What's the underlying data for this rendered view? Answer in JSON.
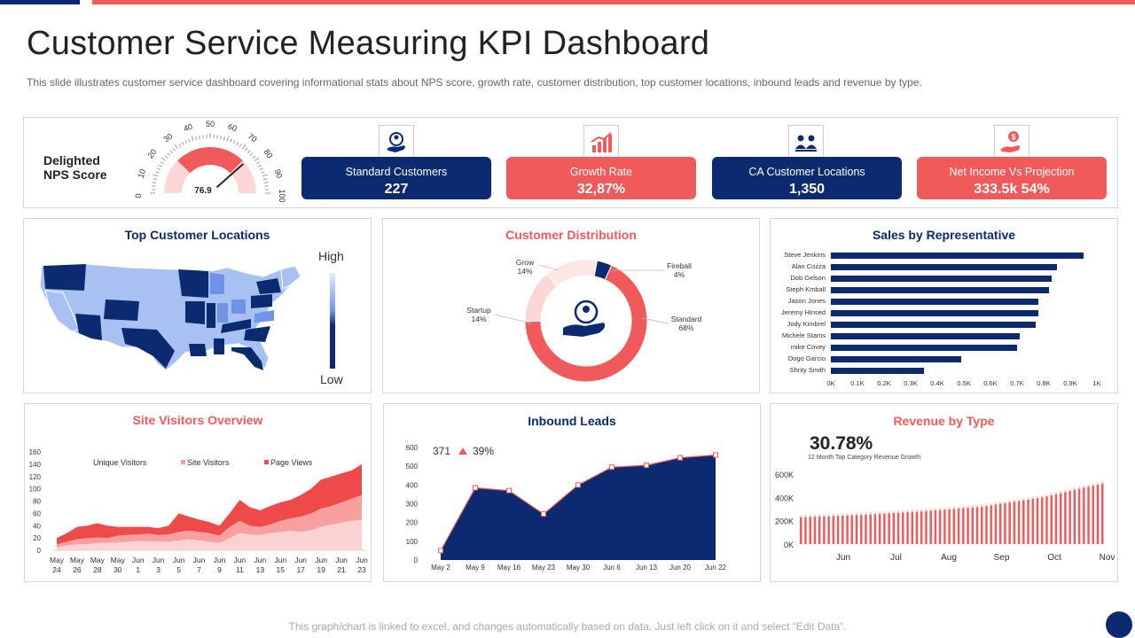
{
  "header": {
    "title": "Customer Service Measuring KPI Dashboard",
    "subtitle": "This slide illustrates customer service dashboard covering informational stats about NPS score, growth rate, customer distribution, top customer locations, inbound leads and revenue by type."
  },
  "nps": {
    "label_line1": "Delighted",
    "label_line2": "NPS Score",
    "value": "76.9",
    "value_num": 76.9,
    "scale": [
      "0",
      "10",
      "20",
      "30",
      "40",
      "50",
      "60",
      "70",
      "80",
      "90",
      "100"
    ]
  },
  "kpis": [
    {
      "label": "Standard Customers",
      "value": "227",
      "icon": "user-hand-icon"
    },
    {
      "label": "Growth Rate",
      "value": "32,87%",
      "icon": "bar-chart-icon"
    },
    {
      "label": "CA Customer Locations",
      "value": "1,350",
      "icon": "team-icon"
    },
    {
      "label": "Net Income Vs Projection",
      "value": "333.5k 54%",
      "icon": "money-hand-icon"
    }
  ],
  "colors": {
    "navy": "#0b2a6f",
    "red": "#f15a5a",
    "light_blue": "#a9c1f2",
    "pink": "#fbd7d7"
  },
  "locations": {
    "title": "Top Customer Locations",
    "legend_high": "High",
    "legend_low": "Low"
  },
  "distribution": {
    "title": "Customer Distribution",
    "segments": [
      {
        "name": "Fireball",
        "pct": "4%",
        "value": 4
      },
      {
        "name": "Standard",
        "pct": "68%",
        "value": 68
      },
      {
        "name": "Startup",
        "pct": "14%",
        "value": 14
      },
      {
        "name": "Grow",
        "pct": "14%",
        "value": 14
      }
    ]
  },
  "sales": {
    "title": "Sales by Representative",
    "names": [
      "Steve Jenkins",
      "Alan Cozza",
      "Dob Gelson",
      "Steph Kmball",
      "Jason Jones",
      "Jeremy Hinsed",
      "Jody Kimbrel",
      "Michele Stams",
      "mike Covey",
      "Dogo Garcio",
      "Shrity Smith"
    ],
    "values": [
      950,
      850,
      830,
      820,
      780,
      780,
      770,
      710,
      700,
      490,
      350
    ],
    "ticks": [
      "0K",
      "0.1K",
      "0.2K",
      "0.3K",
      "0.4K",
      "0.5K",
      "0.6K",
      "0.7K",
      "0.8K",
      "0.9K",
      "1K"
    ]
  },
  "visitors": {
    "title": "Site Visitors Overview",
    "legend": [
      "Unique Visitors",
      "Site Visitors",
      "Page Views"
    ],
    "yticks": [
      "0",
      "20",
      "40",
      "60",
      "80",
      "100",
      "120",
      "140",
      "160"
    ],
    "xlabels": [
      [
        "May",
        "24"
      ],
      [
        "May",
        "26"
      ],
      [
        "May",
        "28"
      ],
      [
        "May",
        "30"
      ],
      [
        "Jun",
        "1"
      ],
      [
        "Jun",
        "3"
      ],
      [
        "Jun",
        "5"
      ],
      [
        "Jun",
        "7"
      ],
      [
        "Jun",
        "9"
      ],
      [
        "Jun",
        "11"
      ],
      [
        "Jun",
        "13"
      ],
      [
        "Jun",
        "15"
      ],
      [
        "Jun",
        "17"
      ],
      [
        "Jun",
        "19"
      ],
      [
        "Jun",
        "21"
      ],
      [
        "Jun",
        "23"
      ]
    ]
  },
  "leads": {
    "title": "Inbound Leads",
    "stat_value": "371",
    "stat_pct": "39%",
    "yticks": [
      "0",
      "100",
      "200",
      "300",
      "400",
      "500",
      "600"
    ],
    "xlabels": [
      "May 2",
      "May 9",
      "May 16",
      "May 23",
      "May 30",
      "Jun 6",
      "Jun 13",
      "Jun 20",
      "Jun 22"
    ]
  },
  "revenue": {
    "title": "Revenue by Type",
    "stat_value": "30.78%",
    "stat_caption": "12 Month Top Category Revenue Growth",
    "yticks": [
      "0K",
      "200K",
      "400K",
      "600K"
    ],
    "xlabels": [
      "Jun",
      "Jul",
      "Aug",
      "Sep",
      "Oct",
      "Nov"
    ]
  },
  "chart_data": [
    {
      "type": "bar",
      "title": "Sales by Representative",
      "categories": [
        "Steve Jenkins",
        "Alan Cozza",
        "Dob Gelson",
        "Steph Kmball",
        "Jason Jones",
        "Jeremy Hinsed",
        "Jody Kimbrel",
        "Michele Stams",
        "mike Covey",
        "Dogo Garcio",
        "Shrity Smith"
      ],
      "values": [
        950,
        850,
        830,
        820,
        780,
        780,
        770,
        710,
        700,
        490,
        350
      ],
      "xlim": [
        0,
        1000
      ],
      "orientation": "horizontal"
    },
    {
      "type": "pie",
      "title": "Customer Distribution",
      "categories": [
        "Fireball",
        "Standard",
        "Startup",
        "Grow"
      ],
      "values": [
        4,
        68,
        14,
        14
      ]
    },
    {
      "type": "area",
      "title": "Site Visitors Overview",
      "categories": [
        "May 24",
        "May 25",
        "May 26",
        "May 27",
        "May 28",
        "May 29",
        "May 30",
        "May 31",
        "Jun 1",
        "Jun 2",
        "Jun 3",
        "Jun 4",
        "Jun 5",
        "Jun 6",
        "Jun 7",
        "Jun 8",
        "Jun 9",
        "Jun 10",
        "Jun 11",
        "Jun 12",
        "Jun 13",
        "Jun 14",
        "Jun 15",
        "Jun 16",
        "Jun 17",
        "Jun 18",
        "Jun 19",
        "Jun 20",
        "Jun 21",
        "Jun 22",
        "Jun 23"
      ],
      "series": [
        {
          "name": "Unique Visitors",
          "values": [
            5,
            8,
            10,
            10,
            12,
            12,
            13,
            14,
            15,
            15,
            14,
            14,
            16,
            18,
            16,
            14,
            12,
            20,
            28,
            26,
            25,
            28,
            30,
            32,
            30,
            33,
            38,
            42,
            45,
            48,
            50
          ]
        },
        {
          "name": "Site Visitors",
          "values": [
            10,
            14,
            18,
            20,
            21,
            20,
            24,
            25,
            26,
            27,
            25,
            26,
            30,
            32,
            30,
            28,
            24,
            38,
            48,
            40,
            38,
            42,
            48,
            52,
            55,
            60,
            68,
            72,
            78,
            84,
            90
          ]
        },
        {
          "name": "Page Views",
          "values": [
            20,
            28,
            38,
            40,
            44,
            40,
            38,
            38,
            38,
            38,
            36,
            40,
            60,
            55,
            50,
            46,
            40,
            60,
            82,
            70,
            65,
            72,
            78,
            82,
            90,
            100,
            115,
            120,
            125,
            130,
            140
          ]
        }
      ],
      "ylim": [
        0,
        160
      ]
    },
    {
      "type": "area",
      "title": "Inbound Leads",
      "categories": [
        "May 2",
        "May 9",
        "May 16",
        "May 23",
        "May 30",
        "Jun 6",
        "Jun 13",
        "Jun 20",
        "Jun 22"
      ],
      "values": [
        50,
        385,
        370,
        245,
        400,
        495,
        505,
        545,
        560
      ],
      "ylim": [
        0,
        600
      ]
    },
    {
      "type": "bar",
      "title": "Revenue by Type",
      "categories": [
        "Jun",
        "Jul",
        "Aug",
        "Sep",
        "Oct",
        "Nov"
      ],
      "values": [
        230,
        250,
        280,
        320,
        400,
        520
      ],
      "ylim": [
        0,
        700
      ],
      "unit": "K"
    }
  ]
}
